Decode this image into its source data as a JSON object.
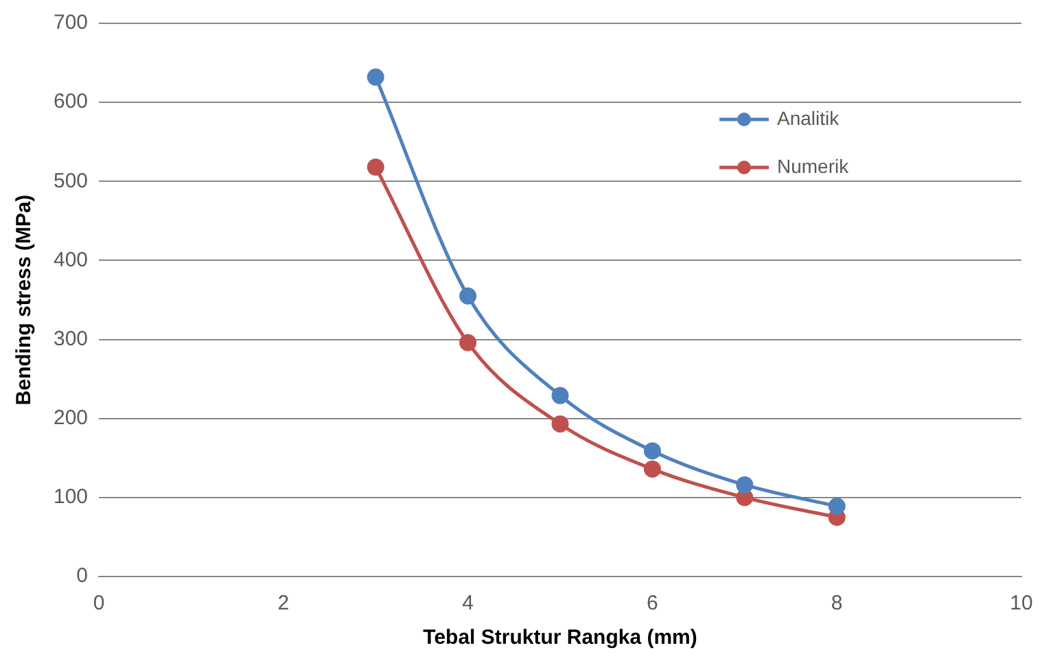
{
  "chart_data": {
    "type": "line",
    "xlabel": "Tebal Struktur Rangka (mm)",
    "ylabel": "Bending stress (MPa)",
    "x": [
      3,
      4,
      5,
      6,
      7,
      8
    ],
    "series": [
      {
        "name": "Analitik",
        "color": "#4f81bd",
        "values": [
          632,
          355,
          229,
          159,
          116,
          89
        ]
      },
      {
        "name": "Numerik",
        "color": "#c0504d",
        "values": [
          518,
          296,
          193,
          136,
          100,
          75
        ]
      }
    ],
    "xlim": [
      0,
      10
    ],
    "xticks": [
      0,
      2,
      4,
      6,
      8,
      10
    ],
    "ylim": [
      0,
      700
    ],
    "yticks": [
      0,
      100,
      200,
      300,
      400,
      500,
      600,
      700
    ],
    "grid": "y",
    "legend": "top right",
    "marker": "circle",
    "line_style": "solid"
  }
}
